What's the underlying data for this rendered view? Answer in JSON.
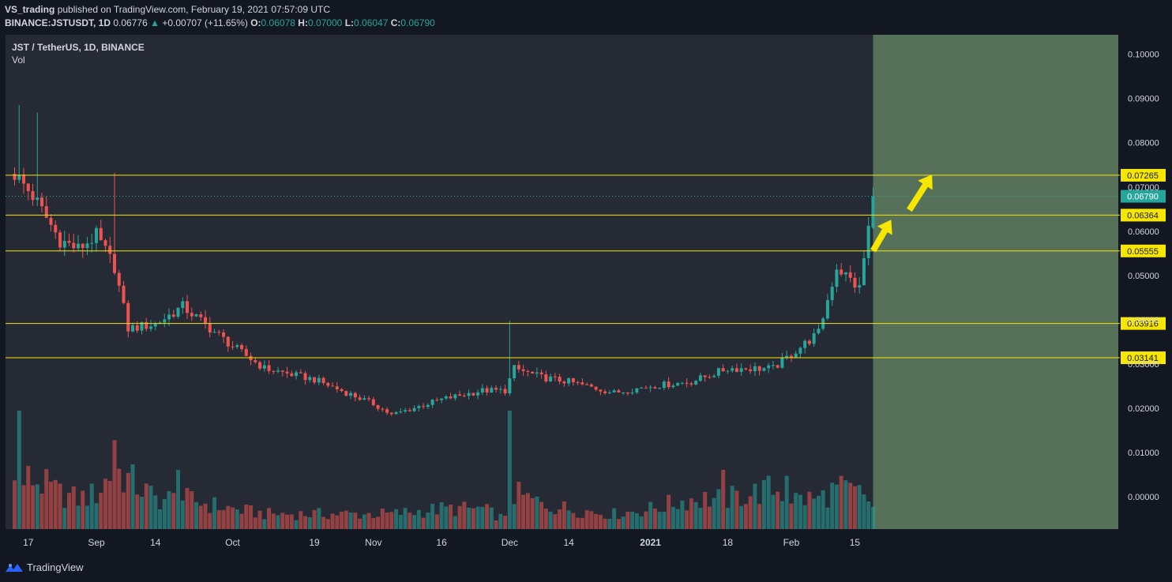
{
  "header": {
    "author": "VS_trading",
    "published": "published on TradingView.com, February 19, 2021 07:57:09 UTC",
    "symbol": "BINANCE:JSTUSDT, 1D",
    "last": "0.06776",
    "change": "+0.00707 (+11.65%)",
    "open_label": "O:",
    "open": "0.06078",
    "high_label": "H:",
    "high": "0.07000",
    "low_label": "L:",
    "low": "0.06047",
    "close_label": "C:",
    "close": "0.06790"
  },
  "legend": {
    "title": "JST / TetherUS, 1D, BINANCE",
    "volume": "Vol"
  },
  "footer": {
    "brand": "TradingView"
  },
  "colors": {
    "bg": "#131722",
    "pane": "#262a35",
    "up": "#26a69a",
    "down": "#ef5350",
    "level": "#f7e600",
    "zone": "#57705a",
    "arrow": "#f7e600"
  },
  "chart_data": {
    "type": "candlestick",
    "title": "JST / TetherUS, 1D, BINANCE",
    "y_axis": {
      "ticks": [
        0.0,
        0.01,
        0.02,
        0.03,
        0.04,
        0.05,
        0.06,
        0.07,
        0.08,
        0.09,
        0.1
      ],
      "tick_labels": [
        "0.00000",
        "0.01000",
        "0.02000",
        "0.03000",
        "0.04000",
        "0.05000",
        "0.06000",
        "0.07000",
        "0.08000",
        "0.09000",
        "0.10000"
      ],
      "range": [
        -0.0073,
        0.1044
      ]
    },
    "x_axis": {
      "tick_labels": [
        "17",
        "Sep",
        "14",
        "Oct",
        "19",
        "Nov",
        "16",
        "Dec",
        "14",
        "2021",
        "18",
        "Feb",
        "15"
      ],
      "tick_dates": [
        "2020-08-17",
        "2020-09-01",
        "2020-09-14",
        "2020-10-01",
        "2020-10-19",
        "2020-11-01",
        "2020-11-16",
        "2020-12-01",
        "2020-12-14",
        "2021-01-01",
        "2021-01-18",
        "2021-02-01",
        "2021-02-15"
      ],
      "range": [
        "2020-08-12",
        "2021-04-14"
      ]
    },
    "horizontal_levels": [
      "0.07265",
      "0.06364",
      "0.05555",
      "0.03916",
      "0.03141"
    ],
    "last_price_label": "0.06790",
    "highlight_zone": {
      "from": "2021-02-19",
      "to": "2021-04-14"
    },
    "arrows": [
      {
        "from": [
          "2021-02-19",
          0.0556
        ],
        "to": [
          "2021-02-23",
          0.0626
        ]
      },
      {
        "from": [
          "2021-02-27",
          0.0648
        ],
        "to": [
          "2021-03-04",
          0.0728
        ]
      }
    ],
    "anchors": [
      {
        "date": "2020-08-14",
        "price": 0.073,
        "vol": 0.45
      },
      {
        "date": "2020-08-18",
        "price": 0.068,
        "vol": 0.5
      },
      {
        "date": "2020-08-24",
        "price": 0.058,
        "vol": 0.35
      },
      {
        "date": "2020-08-28",
        "price": 0.056,
        "vol": 0.3
      },
      {
        "date": "2020-09-01",
        "price": 0.059,
        "vol": 0.35
      },
      {
        "date": "2020-09-05",
        "price": 0.052,
        "vol": 0.6
      },
      {
        "date": "2020-09-08",
        "price": 0.038,
        "vol": 0.5
      },
      {
        "date": "2020-09-14",
        "price": 0.039,
        "vol": 0.3
      },
      {
        "date": "2020-09-20",
        "price": 0.043,
        "vol": 0.3
      },
      {
        "date": "2020-10-01",
        "price": 0.034,
        "vol": 0.2
      },
      {
        "date": "2020-10-08",
        "price": 0.029,
        "vol": 0.15
      },
      {
        "date": "2020-10-19",
        "price": 0.0265,
        "vol": 0.15
      },
      {
        "date": "2020-11-01",
        "price": 0.021,
        "vol": 0.15
      },
      {
        "date": "2020-11-05",
        "price": 0.0185,
        "vol": 0.15
      },
      {
        "date": "2020-11-16",
        "price": 0.022,
        "vol": 0.2
      },
      {
        "date": "2020-11-25",
        "price": 0.024,
        "vol": 0.2
      },
      {
        "date": "2020-11-30",
        "price": 0.024,
        "vol": 0.1
      },
      {
        "date": "2020-12-02",
        "price": 0.029,
        "vol": 0.35
      },
      {
        "date": "2020-12-08",
        "price": 0.027,
        "vol": 0.25
      },
      {
        "date": "2020-12-14",
        "price": 0.026,
        "vol": 0.2
      },
      {
        "date": "2020-12-24",
        "price": 0.0235,
        "vol": 0.15
      },
      {
        "date": "2021-01-01",
        "price": 0.025,
        "vol": 0.2
      },
      {
        "date": "2021-01-10",
        "price": 0.026,
        "vol": 0.3
      },
      {
        "date": "2021-01-18",
        "price": 0.029,
        "vol": 0.3
      },
      {
        "date": "2021-01-28",
        "price": 0.029,
        "vol": 0.4
      },
      {
        "date": "2021-02-02",
        "price": 0.033,
        "vol": 0.3
      },
      {
        "date": "2021-02-07",
        "price": 0.037,
        "vol": 0.3
      },
      {
        "date": "2021-02-11",
        "price": 0.052,
        "vol": 0.4
      },
      {
        "date": "2021-02-16",
        "price": 0.047,
        "vol": 0.35
      },
      {
        "date": "2021-02-18",
        "price": 0.0608,
        "vol": 0.3
      },
      {
        "date": "2021-02-19",
        "price": 0.0679,
        "vol": 0.2
      }
    ],
    "volume_spikes": [
      {
        "date": "2020-08-15",
        "vol": 1.0
      },
      {
        "date": "2020-09-05",
        "vol": 0.75
      },
      {
        "date": "2020-09-19",
        "vol": 0.5
      },
      {
        "date": "2020-12-01",
        "vol": 1.0
      },
      {
        "date": "2021-01-17",
        "vol": 0.5
      },
      {
        "date": "2021-01-31",
        "vol": 0.45
      }
    ],
    "price_spikes": [
      {
        "date": "2020-08-13",
        "high": 0.0963
      },
      {
        "date": "2020-08-15",
        "high": 0.0885
      },
      {
        "date": "2020-08-19",
        "high": 0.0868
      },
      {
        "date": "2020-09-05",
        "high": 0.0732
      },
      {
        "date": "2020-12-01",
        "high": 0.0398
      },
      {
        "date": "2021-02-19",
        "high": 0.07
      }
    ]
  }
}
